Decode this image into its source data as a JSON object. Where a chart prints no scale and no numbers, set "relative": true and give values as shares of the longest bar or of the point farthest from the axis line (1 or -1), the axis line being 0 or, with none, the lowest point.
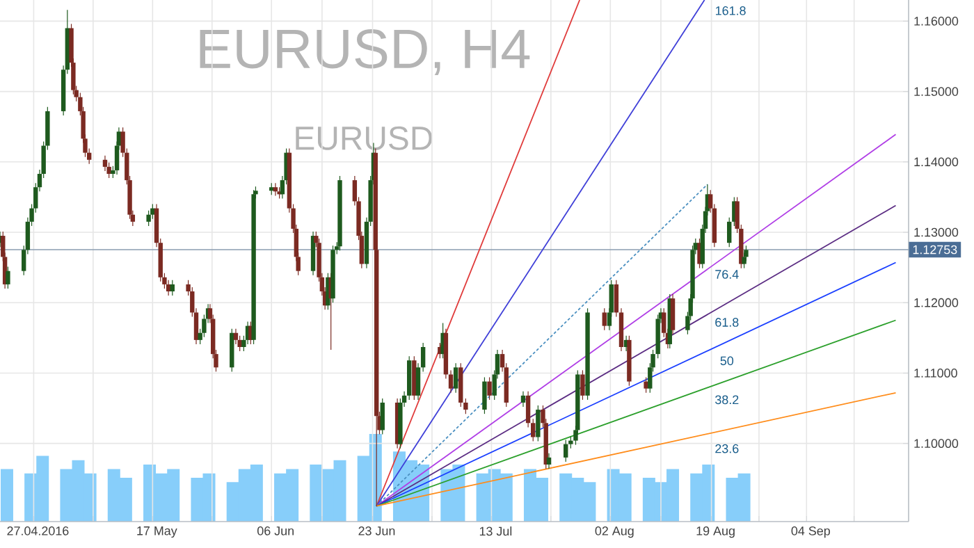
{
  "chart_data": [
    {
      "type": "candlestick",
      "title": "EURUSD, H4",
      "subtitle": "EURUSD",
      "x": [
        "2016-04-21T08:00",
        "2016-04-21T20:00",
        "2016-04-22T04:00",
        "2016-04-22T16:00",
        "2016-04-25T08:00",
        "2016-04-26T00:00",
        "2016-04-26T16:00",
        "2016-04-27T08:00",
        "2016-04-28T00:00",
        "2016-04-28T16:00",
        "2016-04-29T08:00",
        "2016-05-02T00:00",
        "2016-05-02T16:00",
        "2016-05-03T08:00",
        "2016-05-03T16:00",
        "2016-05-04T04:00",
        "2016-05-04T20:00",
        "2016-05-05T08:00",
        "2016-05-05T16:00",
        "2016-05-06T08:00",
        "2016-05-09T00:00",
        "2016-05-09T16:00",
        "2016-05-10T08:00",
        "2016-05-11T00:00",
        "2016-05-11T08:00",
        "2016-05-12T00:00",
        "2016-05-12T16:00",
        "2016-05-13T04:00",
        "2016-05-13T16:00",
        "2016-05-16T08:00",
        "2016-05-17T00:00",
        "2016-05-17T16:00",
        "2016-05-18T08:00",
        "2016-05-19T00:00",
        "2016-05-19T16:00",
        "2016-05-20T08:00",
        "2016-05-23T00:00",
        "2016-05-23T16:00",
        "2016-05-24T08:00",
        "2016-05-25T00:00",
        "2016-05-25T16:00",
        "2016-05-26T08:00",
        "2016-05-26T16:00",
        "2016-05-27T04:00",
        "2016-05-27T16:00",
        "2016-05-30T08:00",
        "2016-05-31T00:00",
        "2016-05-31T16:00",
        "2016-06-01T08:00",
        "2016-06-02T00:00",
        "2016-06-02T12:00",
        "2016-06-03T00:00",
        "2016-06-03T08:00",
        "2016-06-06T00:00",
        "2016-06-06T16:00",
        "2016-06-07T08:00",
        "2016-06-07T20:00",
        "2016-06-08T12:00",
        "2016-06-09T00:00",
        "2016-06-09T16:00",
        "2016-06-10T04:00",
        "2016-06-10T12:00",
        "2016-06-13T00:00",
        "2016-06-13T12:00",
        "2016-06-14T00:00",
        "2016-06-14T12:00",
        "2016-06-15T00:00",
        "2016-06-15T12:00",
        "2016-06-16T00:00",
        "2016-06-16T08:00",
        "2016-06-17T00:00",
        "2016-06-17T12:00",
        "2016-06-20T00:00",
        "2016-06-20T16:00",
        "2016-06-21T04:00",
        "2016-06-22T00:00",
        "2016-06-22T16:00",
        "2016-06-23T04:00",
        "2016-06-23T12:00",
        "2016-06-23T16:00",
        "2016-06-24T04:00",
        "2016-06-24T16:00",
        "2016-06-27T04:00",
        "2016-06-27T16:00",
        "2016-06-28T08:00",
        "2016-06-29T04:00",
        "2016-06-30T00:00",
        "2016-06-30T16:00",
        "2016-07-01T12:00",
        "2016-07-04T08:00",
        "2016-07-04T20:00",
        "2016-07-05T08:00",
        "2016-07-06T04:00",
        "2016-07-07T00:00",
        "2016-07-07T20:00",
        "2016-07-08T16:00",
        "2016-07-11T20:00",
        "2016-07-12T16:00",
        "2016-07-13T12:00",
        "2016-07-14T00:00",
        "2016-07-14T20:00",
        "2016-07-15T12:00",
        "2016-07-18T08:00",
        "2016-07-19T04:00",
        "2016-07-20T00:00",
        "2016-07-20T20:00",
        "2016-07-21T16:00",
        "2016-07-22T04:00",
        "2016-07-22T16:00",
        "2016-07-25T12:00",
        "2016-07-26T08:00",
        "2016-07-27T04:00",
        "2016-07-27T12:00",
        "2016-07-28T08:00",
        "2016-07-29T04:00",
        "2016-08-01T00:00",
        "2016-08-01T20:00",
        "2016-08-02T04:00",
        "2016-08-03T00:00",
        "2016-08-03T20:00",
        "2016-08-04T16:00",
        "2016-08-05T04:00",
        "2016-08-08T00:00",
        "2016-08-08T16:00",
        "2016-08-09T04:00",
        "2016-08-10T00:00",
        "2016-08-10T12:00",
        "2016-08-11T00:00",
        "2016-08-11T16:00",
        "2016-08-12T00:00",
        "2016-08-12T12:00",
        "2016-08-15T00:00",
        "2016-08-15T12:00",
        "2016-08-15T20:00",
        "2016-08-16T08:00",
        "2016-08-17T00:00",
        "2016-08-17T12:00",
        "2016-08-18T00:00",
        "2016-08-18T08:00",
        "2016-08-18T20:00",
        "2016-08-19T12:00",
        "2016-08-22T00:00",
        "2016-08-22T20:00",
        "2016-08-23T08:00",
        "2016-08-24T00:00",
        "2016-08-24T12:00",
        "2016-08-24T20:00"
      ],
      "ohlc": [
        [
          1.1285,
          1.1301,
          1.1279,
          1.1295
        ],
        [
          1.1295,
          1.1301,
          1.1259,
          1.1265
        ],
        [
          1.1265,
          1.1271,
          1.122,
          1.1226
        ],
        [
          1.1226,
          1.1251,
          1.122,
          1.1245
        ],
        [
          1.1245,
          1.1281,
          1.1239,
          1.1275
        ],
        [
          1.1275,
          1.1321,
          1.1269,
          1.1315
        ],
        [
          1.1315,
          1.134,
          1.1309,
          1.1334
        ],
        [
          1.1334,
          1.137,
          1.1328,
          1.1364
        ],
        [
          1.1364,
          1.1389,
          1.1358,
          1.1383
        ],
        [
          1.1383,
          1.1429,
          1.1377,
          1.1423
        ],
        [
          1.1423,
          1.1478,
          1.1417,
          1.1472
        ],
        [
          1.1472,
          1.1537,
          1.1466,
          1.1531
        ],
        [
          1.1531,
          1.1616,
          1.1525,
          1.159
        ],
        [
          1.159,
          1.1596,
          1.1535,
          1.1541
        ],
        [
          1.1541,
          1.1547,
          1.1496,
          1.1502
        ],
        [
          1.1502,
          1.1508,
          1.1486,
          1.1492
        ],
        [
          1.1492,
          1.1498,
          1.1466,
          1.1472
        ],
        [
          1.1472,
          1.1478,
          1.1427,
          1.1433
        ],
        [
          1.1433,
          1.1439,
          1.1407,
          1.1413
        ],
        [
          1.1413,
          1.1419,
          1.1397,
          1.1403
        ],
        [
          1.1403,
          1.1409,
          1.1387,
          1.1393
        ],
        [
          1.1393,
          1.1399,
          1.1377,
          1.1383
        ],
        [
          1.1383,
          1.1394,
          1.1377,
          1.1388
        ],
        [
          1.1388,
          1.1429,
          1.1382,
          1.1423
        ],
        [
          1.1423,
          1.1449,
          1.1417,
          1.1443
        ],
        [
          1.1443,
          1.1449,
          1.1407,
          1.1413
        ],
        [
          1.1413,
          1.1419,
          1.1368,
          1.1374
        ],
        [
          1.1374,
          1.138,
          1.1319,
          1.1325
        ],
        [
          1.1325,
          1.1331,
          1.1309,
          1.1315
        ],
        [
          1.1315,
          1.1331,
          1.1309,
          1.1325
        ],
        [
          1.1325,
          1.134,
          1.1319,
          1.1334
        ],
        [
          1.1334,
          1.134,
          1.1279,
          1.1285
        ],
        [
          1.1285,
          1.1291,
          1.123,
          1.1236
        ],
        [
          1.1236,
          1.1242,
          1.122,
          1.1226
        ],
        [
          1.1226,
          1.1232,
          1.121,
          1.1216
        ],
        [
          1.1216,
          1.1232,
          1.121,
          1.1226
        ],
        [
          1.1226,
          1.1232,
          1.121,
          1.1216
        ],
        [
          1.1216,
          1.1222,
          1.118,
          1.1186
        ],
        [
          1.1186,
          1.1192,
          1.1141,
          1.1147
        ],
        [
          1.1147,
          1.1163,
          1.1141,
          1.1157
        ],
        [
          1.1157,
          1.1183,
          1.1151,
          1.1177
        ],
        [
          1.1177,
          1.1198,
          1.1171,
          1.1192
        ],
        [
          1.1192,
          1.1198,
          1.1171,
          1.1177
        ],
        [
          1.1177,
          1.1183,
          1.1121,
          1.1127
        ],
        [
          1.1127,
          1.1133,
          1.1102,
          1.1108
        ],
        [
          1.1108,
          1.1163,
          1.1102,
          1.1157
        ],
        [
          1.1157,
          1.1163,
          1.1141,
          1.1147
        ],
        [
          1.1147,
          1.1153,
          1.1131,
          1.1137
        ],
        [
          1.1137,
          1.1153,
          1.1131,
          1.1147
        ],
        [
          1.1147,
          1.1173,
          1.1141,
          1.1167
        ],
        [
          1.1167,
          1.1173,
          1.1141,
          1.1147
        ],
        [
          1.1147,
          1.136,
          1.1141,
          1.1354
        ],
        [
          1.1354,
          1.1365,
          1.1348,
          1.1359
        ],
        [
          1.1359,
          1.137,
          1.1353,
          1.1364
        ],
        [
          1.1364,
          1.137,
          1.1352,
          1.1358
        ],
        [
          1.1358,
          1.1364,
          1.1348,
          1.1354
        ],
        [
          1.1354,
          1.138,
          1.1348,
          1.1374
        ],
        [
          1.1374,
          1.1419,
          1.1368,
          1.1413
        ],
        [
          1.1413,
          1.1419,
          1.1328,
          1.1334
        ],
        [
          1.1334,
          1.134,
          1.1299,
          1.1305
        ],
        [
          1.1305,
          1.1311,
          1.1259,
          1.1265
        ],
        [
          1.1265,
          1.1271,
          1.1239,
          1.1245
        ],
        [
          1.1245,
          1.1301,
          1.1239,
          1.1295
        ],
        [
          1.1295,
          1.1301,
          1.1279,
          1.1285
        ],
        [
          1.1285,
          1.1291,
          1.123,
          1.1236
        ],
        [
          1.1236,
          1.1242,
          1.121,
          1.1216
        ],
        [
          1.1216,
          1.1222,
          1.119,
          1.1196
        ],
        [
          1.1196,
          1.1242,
          1.119,
          1.1236
        ],
        [
          1.1236,
          1.1242,
          1.1133,
          1.1206
        ],
        [
          1.1206,
          1.1281,
          1.12,
          1.1275
        ],
        [
          1.1275,
          1.1286,
          1.1269,
          1.128
        ],
        [
          1.128,
          1.138,
          1.1274,
          1.1374
        ],
        [
          1.1374,
          1.138,
          1.1338,
          1.1344
        ],
        [
          1.1344,
          1.135,
          1.1289,
          1.1295
        ],
        [
          1.1295,
          1.1301,
          1.1249,
          1.1255
        ],
        [
          1.1255,
          1.1321,
          1.1249,
          1.1315
        ],
        [
          1.1315,
          1.138,
          1.1309,
          1.1374
        ],
        [
          1.1374,
          1.1427,
          1.1368,
          1.1413
        ],
        [
          1.1413,
          1.1419,
          1.1269,
          1.1275
        ],
        [
          1.1275,
          1.1281,
          1.0911,
          1.1039
        ],
        [
          1.1039,
          1.1045,
          1.1013,
          1.1019
        ],
        [
          1.1019,
          1.1064,
          1.1013,
          1.1058
        ],
        [
          1.1058,
          1.1064,
          1.0993,
          1.0999
        ],
        [
          1.0999,
          1.1064,
          1.0993,
          1.1058
        ],
        [
          1.1058,
          1.1074,
          1.1052,
          1.1068
        ],
        [
          1.1068,
          1.1124,
          1.1062,
          1.1118
        ],
        [
          1.1118,
          1.1124,
          1.1062,
          1.1068
        ],
        [
          1.1068,
          1.1114,
          1.1062,
          1.1108
        ],
        [
          1.1108,
          1.1143,
          1.1102,
          1.1137
        ],
        [
          1.1137,
          1.1143,
          1.1121,
          1.1127
        ],
        [
          1.1127,
          1.1171,
          1.1121,
          1.1157
        ],
        [
          1.1157,
          1.1163,
          1.1092,
          1.1098
        ],
        [
          1.1098,
          1.1104,
          1.1072,
          1.1078
        ],
        [
          1.1078,
          1.1114,
          1.1072,
          1.1108
        ],
        [
          1.1108,
          1.1114,
          1.1052,
          1.1058
        ],
        [
          1.1058,
          1.1064,
          1.1042,
          1.1048
        ],
        [
          1.1048,
          1.1094,
          1.1042,
          1.1088
        ],
        [
          1.1088,
          1.1094,
          1.1062,
          1.1068
        ],
        [
          1.1068,
          1.1104,
          1.1062,
          1.1098
        ],
        [
          1.1098,
          1.1133,
          1.1092,
          1.1127
        ],
        [
          1.1127,
          1.1133,
          1.1102,
          1.1108
        ],
        [
          1.1108,
          1.1114,
          1.1052,
          1.1058
        ],
        [
          1.1058,
          1.1074,
          1.1052,
          1.1068
        ],
        [
          1.1068,
          1.1074,
          1.1023,
          1.1029
        ],
        [
          1.1029,
          1.1035,
          1.1003,
          1.1009
        ],
        [
          1.1009,
          1.1054,
          1.1003,
          1.1048
        ],
        [
          1.1048,
          1.1054,
          1.1023,
          1.1029
        ],
        [
          1.1029,
          1.1035,
          1.0964,
          1.097
        ],
        [
          1.097,
          1.0986,
          1.0964,
          1.098
        ],
        [
          1.098,
          1.1005,
          1.0974,
          1.0999
        ],
        [
          1.0999,
          1.101,
          1.0993,
          1.1004
        ],
        [
          1.1004,
          1.1025,
          1.0998,
          1.1019
        ],
        [
          1.1019,
          1.1104,
          1.1013,
          1.1098
        ],
        [
          1.1098,
          1.1104,
          1.1062,
          1.1068
        ],
        [
          1.1068,
          1.1192,
          1.1062,
          1.1186
        ],
        [
          1.1186,
          1.1192,
          1.1161,
          1.1167
        ],
        [
          1.1167,
          1.1192,
          1.1161,
          1.1186
        ],
        [
          1.1186,
          1.1232,
          1.118,
          1.1226
        ],
        [
          1.1226,
          1.1232,
          1.118,
          1.1186
        ],
        [
          1.1186,
          1.1192,
          1.1131,
          1.1137
        ],
        [
          1.1137,
          1.1153,
          1.1131,
          1.1147
        ],
        [
          1.1147,
          1.1153,
          1.1082,
          1.1088
        ],
        [
          1.1088,
          1.1094,
          1.1072,
          1.1078
        ],
        [
          1.1078,
          1.1114,
          1.1072,
          1.1108
        ],
        [
          1.1108,
          1.1133,
          1.1102,
          1.1127
        ],
        [
          1.1127,
          1.1183,
          1.1121,
          1.1177
        ],
        [
          1.1177,
          1.1192,
          1.1171,
          1.1186
        ],
        [
          1.1186,
          1.1192,
          1.1151,
          1.1157
        ],
        [
          1.1157,
          1.1163,
          1.1135,
          1.1141
        ],
        [
          1.1141,
          1.1212,
          1.1135,
          1.1206
        ],
        [
          1.1206,
          1.1212,
          1.1155,
          1.1161
        ],
        [
          1.1161,
          1.1187,
          1.1155,
          1.1181
        ],
        [
          1.1181,
          1.1212,
          1.1175,
          1.1206
        ],
        [
          1.1206,
          1.1281,
          1.12,
          1.1275
        ],
        [
          1.1275,
          1.1291,
          1.1269,
          1.1285
        ],
        [
          1.1285,
          1.1291,
          1.1249,
          1.1255
        ],
        [
          1.1255,
          1.1311,
          1.1249,
          1.1305
        ],
        [
          1.1305,
          1.1336,
          1.1299,
          1.133
        ],
        [
          1.133,
          1.1368,
          1.1324,
          1.1354
        ],
        [
          1.1354,
          1.136,
          1.1328,
          1.1334
        ],
        [
          1.1334,
          1.134,
          1.1279,
          1.1285
        ],
        [
          1.1285,
          1.1321,
          1.1279,
          1.1315
        ],
        [
          1.1315,
          1.135,
          1.1309,
          1.1344
        ],
        [
          1.1344,
          1.135,
          1.1299,
          1.1305
        ],
        [
          1.1305,
          1.1311,
          1.1249,
          1.1255
        ],
        [
          1.1255,
          1.1271,
          1.1249,
          1.1265
        ],
        [
          1.1265,
          1.1281,
          1.1259,
          1.1275
        ]
      ],
      "series": [
        {
          "type": "line",
          "color": "#e03a3a",
          "x": [
            "2016-06-23T16:00",
            "2016-07-27T20:00"
          ],
          "values": [
            1.0911,
            1.163
          ]
        },
        {
          "type": "line",
          "name": "161.8",
          "color": "#3f3fd8",
          "x": [
            "2016-06-23T16:00",
            "2016-08-17T20:00"
          ],
          "values": [
            1.0911,
            1.163
          ]
        },
        {
          "type": "line",
          "color": "#4a8fc0",
          "line_style": "dashed",
          "x": [
            "2016-06-23T16:00",
            "2016-08-18T08:00"
          ],
          "values": [
            1.0911,
            1.1368
          ]
        },
        {
          "type": "line",
          "name": "76.4",
          "color": "#b03ee6",
          "x": [
            "2016-06-23T16:00",
            "2016-09-19T00:00"
          ],
          "values": [
            1.0911,
            1.1439
          ]
        },
        {
          "type": "line",
          "name": "61.8",
          "color": "#5b2c83",
          "x": [
            "2016-06-23T16:00",
            "2016-09-19T00:00"
          ],
          "values": [
            1.0911,
            1.1338
          ]
        },
        {
          "type": "line",
          "name": "50",
          "color": "#1a3fff",
          "x": [
            "2016-06-23T16:00",
            "2016-09-19T00:00"
          ],
          "values": [
            1.0911,
            1.1257
          ]
        },
        {
          "type": "line",
          "name": "38.2",
          "color": "#2ca02c",
          "x": [
            "2016-06-23T16:00",
            "2016-09-19T00:00"
          ],
          "values": [
            1.0911,
            1.1175
          ]
        },
        {
          "type": "line",
          "name": "23.6",
          "color": "#ff8c1a",
          "x": [
            "2016-06-23T16:00",
            "2016-09-19T00:00"
          ],
          "values": [
            1.0911,
            1.1072
          ]
        }
      ],
      "ref_lines": [
        {
          "axis": "y",
          "value": 1.12753,
          "label": "1.12753",
          "color": "#8a9db0"
        }
      ],
      "xlim": [
        "2016-04-21T08:00",
        "2016-09-21T04:00"
      ],
      "ylim": [
        1.0889,
        1.163
      ],
      "xticks": [
        {
          "value": "2016-04-27",
          "label": "27.04.2016"
        },
        {
          "value": "2016-05-07",
          "label": null
        },
        {
          "value": "2016-05-17",
          "label": "17 May"
        },
        {
          "value": "2016-05-27",
          "label": null
        },
        {
          "value": "2016-06-06",
          "label": "06 Jun"
        },
        {
          "value": "2016-06-14T12:00",
          "label": null
        },
        {
          "value": "2016-06-23",
          "label": "23 Jun"
        },
        {
          "value": "2016-07-03",
          "label": null
        },
        {
          "value": "2016-07-13",
          "label": "13 Jul"
        },
        {
          "value": "2016-07-23",
          "label": null
        },
        {
          "value": "2016-08-02",
          "label": "02 Aug"
        },
        {
          "value": "2016-08-10T12:00",
          "label": null
        },
        {
          "value": "2016-08-19",
          "label": "19 Aug"
        },
        {
          "value": "2016-08-27",
          "label": null
        },
        {
          "value": "2016-09-04",
          "label": "04 Sep"
        },
        {
          "value": "2016-09-12",
          "label": null
        }
      ],
      "yticks": [
        {
          "value": 1.1,
          "label": "1.10000"
        },
        {
          "value": 1.11,
          "label": "1.11000"
        },
        {
          "value": 1.12,
          "label": "1.12000"
        },
        {
          "value": 1.13,
          "label": "1.13000"
        },
        {
          "value": 1.14,
          "label": "1.14000"
        },
        {
          "value": 1.15,
          "label": "1.15000"
        },
        {
          "value": 1.16,
          "label": "1.16000"
        }
      ],
      "grid": true
    },
    {
      "type": "bar",
      "relative": true,
      "color": "#87cefa",
      "xlim": [
        "2016-04-21T08:00",
        "2016-09-21T04:00"
      ],
      "x": [
        "2016-04-22T12:00",
        "2016-04-26T12:00",
        "2016-04-28T12:00",
        "2016-05-02T12:00",
        "2016-05-04T12:00",
        "2016-05-06T12:00",
        "2016-05-10T12:00",
        "2016-05-12T12:00",
        "2016-05-16T12:00",
        "2016-05-18T12:00",
        "2016-05-20T12:00",
        "2016-05-24T12:00",
        "2016-05-26T12:00",
        "2016-05-30T12:00",
        "2016-06-01T12:00",
        "2016-06-03T12:00",
        "2016-06-07T12:00",
        "2016-06-09T12:00",
        "2016-06-13T12:00",
        "2016-06-15T12:00",
        "2016-06-17T12:00",
        "2016-06-21T12:00",
        "2016-06-23T12:00",
        "2016-06-27T12:00",
        "2016-06-29T12:00",
        "2016-07-01T12:00",
        "2016-07-05T12:00",
        "2016-07-07T12:00",
        "2016-07-11T12:00",
        "2016-07-13T12:00",
        "2016-07-15T12:00",
        "2016-07-19T12:00",
        "2016-07-21T12:00",
        "2016-07-25T12:00",
        "2016-07-27T12:00",
        "2016-07-29T12:00",
        "2016-08-02T12:00",
        "2016-08-04T12:00",
        "2016-08-08T12:00",
        "2016-08-10T12:00",
        "2016-08-12T12:00",
        "2016-08-16T12:00",
        "2016-08-18T12:00",
        "2016-08-22T12:00",
        "2016-08-24T12:00"
      ],
      "values": [
        0.6,
        0.55,
        0.75,
        0.6,
        0.7,
        0.55,
        0.6,
        0.5,
        0.65,
        0.55,
        0.6,
        0.5,
        0.55,
        0.45,
        0.6,
        0.65,
        0.55,
        0.6,
        0.65,
        0.6,
        0.7,
        0.75,
        1.0,
        0.8,
        0.7,
        0.65,
        0.6,
        0.65,
        0.55,
        0.6,
        0.55,
        0.6,
        0.5,
        0.55,
        0.5,
        0.45,
        0.6,
        0.55,
        0.5,
        0.45,
        0.6,
        0.55,
        0.65,
        0.5,
        0.55
      ]
    }
  ]
}
